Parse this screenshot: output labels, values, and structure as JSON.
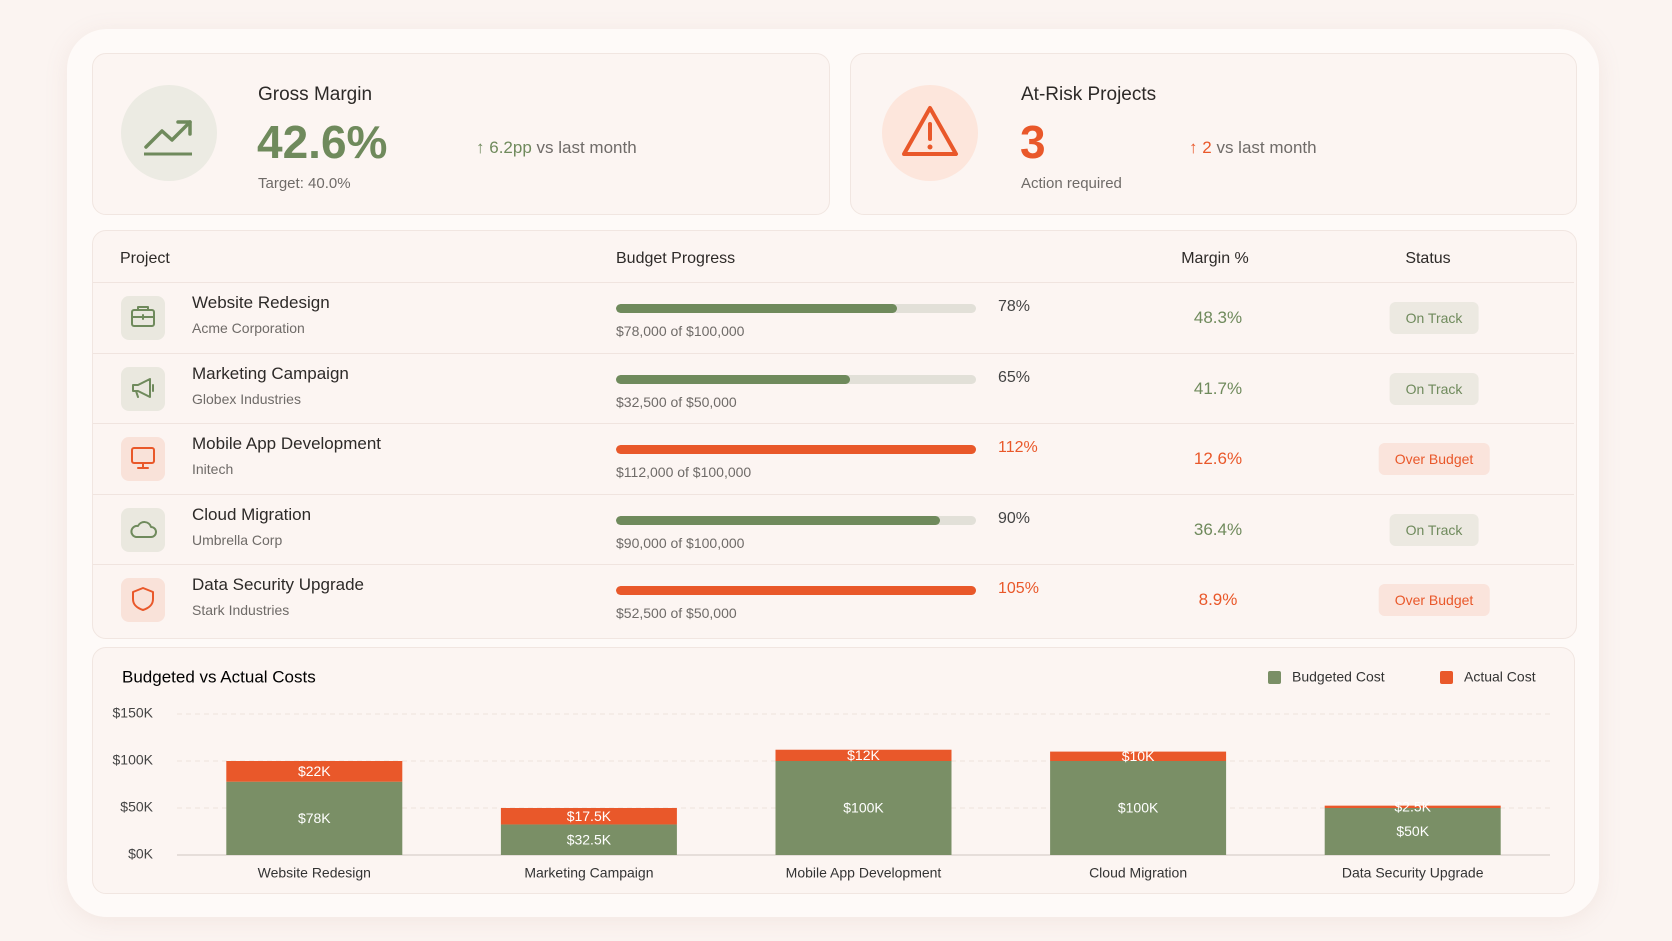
{
  "kpis": [
    {
      "title": "Gross Margin",
      "value": "42.6%",
      "note": "Target: 40.0%",
      "delta": "6.2pp",
      "delta_text": "vs last month",
      "color": "#6f8a5c"
    },
    {
      "title": "At-Risk Projects",
      "value": "3",
      "note": "Action required",
      "delta": "2",
      "delta_text": "vs last month",
      "color": "#e9582a"
    }
  ],
  "table": {
    "columns": [
      "Project",
      "Budget Progress",
      "Margin %",
      "Status"
    ],
    "rows": [
      {
        "name": "Website Redesign",
        "client": "Acme Corporation",
        "progress": 78,
        "progress_label": "78%",
        "amount": "$78,000 of $100,000",
        "margin": "48.3%",
        "status": "On Track",
        "color": "#6f8a5c"
      },
      {
        "name": "Marketing Campaign",
        "client": "Globex Industries",
        "progress": 65,
        "progress_label": "65%",
        "amount": "$32,500 of $50,000",
        "margin": "41.7%",
        "status": "On Track",
        "color": "#6f8a5c"
      },
      {
        "name": "Mobile App Development",
        "client": "Initech",
        "progress": 112,
        "progress_label": "112%",
        "amount": "$112,000 of $100,000",
        "margin": "12.6%",
        "status": "Over Budget",
        "color": "#e9582a"
      },
      {
        "name": "Cloud Migration",
        "client": "Umbrella Corp",
        "progress": 90,
        "progress_label": "90%",
        "amount": "$90,000 of $100,000",
        "margin": "36.4%",
        "status": "On Track",
        "color": "#6f8a5c"
      },
      {
        "name": "Data Security Upgrade",
        "client": "Stark Industries",
        "progress": 105,
        "progress_label": "105%",
        "amount": "$52,500 of $50,000",
        "margin": "8.9%",
        "status": "Over Budget",
        "color": "#e9582a"
      }
    ]
  },
  "chart_data": {
    "type": "stacked-bar",
    "title": "Budgeted vs Actual Costs",
    "categories": [
      "Website Redesign",
      "Marketing Campaign",
      "Mobile App Development",
      "Cloud Migration",
      "Data Security Upgrade"
    ],
    "series": [
      {
        "name": "Budgeted Cost",
        "color": "#7a8f66",
        "values": [
          78000,
          32500,
          100000,
          100000,
          50000
        ],
        "value_labels": [
          "$78K",
          "$32.5K",
          "$100K",
          "$100K",
          "$50K"
        ]
      },
      {
        "name": "Actual Cost",
        "color": "#e9582a",
        "values": [
          22000,
          17500,
          12000,
          10000,
          2500
        ],
        "value_labels": [
          "$22K",
          "$17.5K",
          "$12K",
          "$10K",
          "$2.5K"
        ]
      }
    ],
    "ylim": [
      0,
      150000
    ],
    "yticks": [
      {
        "value": 0,
        "label": "$0K"
      },
      {
        "value": 50000,
        "label": "$50K"
      },
      {
        "value": 100000,
        "label": "$100K"
      },
      {
        "value": 150000,
        "label": "$150K"
      }
    ],
    "grid": true,
    "legend": "top-right"
  }
}
